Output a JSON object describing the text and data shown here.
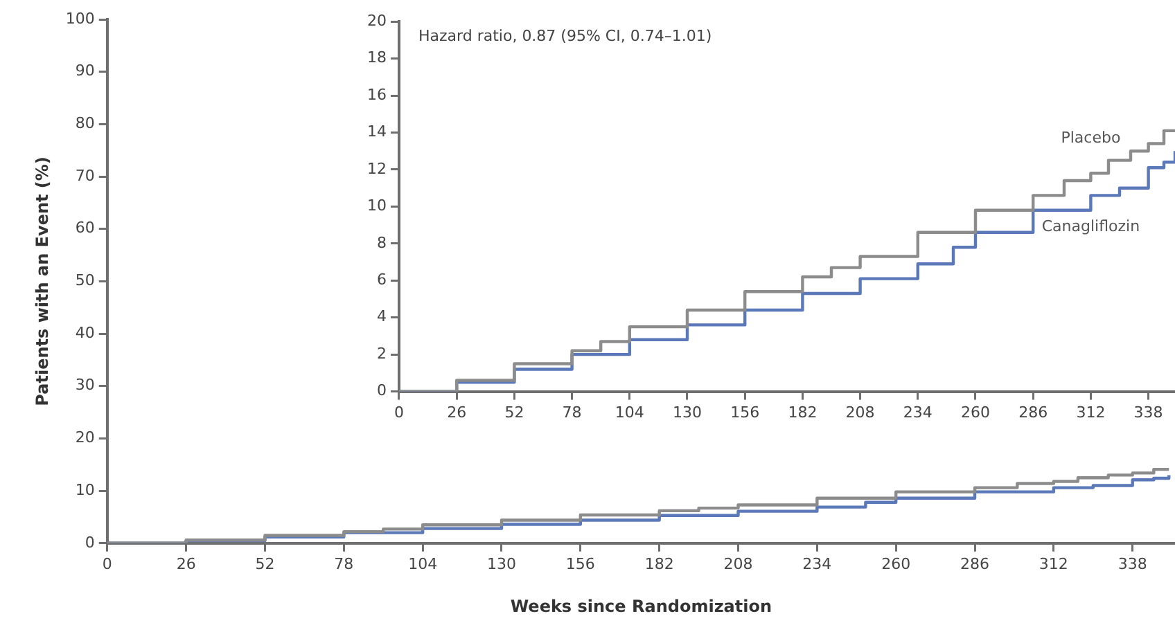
{
  "chart_data": [
    {
      "type": "step",
      "xlabel": "Weeks since Randomization",
      "ylabel": "Patients with an Event (%)",
      "xlim": [
        0,
        352
      ],
      "xticks": [
        0,
        26,
        52,
        78,
        104,
        130,
        156,
        182,
        208,
        234,
        260,
        286,
        312,
        338
      ],
      "ylim": [
        0,
        100
      ],
      "yticks": [
        0,
        10,
        20,
        30,
        40,
        50,
        60,
        70,
        80,
        90,
        100
      ],
      "grid": false,
      "legend": false,
      "series": [
        {
          "color": "#8c8c8c",
          "x": [
            0,
            26,
            52,
            78,
            91,
            104,
            130,
            156,
            182,
            195,
            208,
            234,
            260,
            286,
            300,
            312,
            320,
            330,
            338,
            345,
            350
          ],
          "values": [
            0,
            0.6,
            1.5,
            2.2,
            2.7,
            3.5,
            4.4,
            5.4,
            6.2,
            6.7,
            7.3,
            8.6,
            9.8,
            10.6,
            11.4,
            11.8,
            12.5,
            13.0,
            13.4,
            14.1,
            14.1
          ]
        },
        {
          "color": "#5b78b8",
          "x": [
            0,
            26,
            52,
            78,
            104,
            130,
            156,
            182,
            208,
            234,
            250,
            260,
            286,
            312,
            325,
            338,
            345,
            350
          ],
          "values": [
            0,
            0.5,
            1.2,
            2.0,
            2.8,
            3.6,
            4.4,
            5.3,
            6.1,
            6.9,
            7.8,
            8.6,
            9.8,
            10.6,
            11.0,
            12.1,
            12.4,
            13.0
          ]
        }
      ]
    },
    {
      "type": "step",
      "xlim": [
        0,
        350
      ],
      "xticks": [
        0,
        26,
        52,
        78,
        104,
        130,
        156,
        182,
        208,
        234,
        260,
        286,
        312,
        338
      ],
      "ylim": [
        0,
        20
      ],
      "yticks": [
        0,
        2,
        4,
        6,
        8,
        10,
        12,
        14,
        16,
        18,
        20
      ],
      "grid": false,
      "legend": false,
      "annotations": [
        "Hazard ratio, 0.87 (95% CI, 0.74–1.01)"
      ],
      "series": [
        {
          "name": "Placebo",
          "color": "#8c8c8c",
          "x": [
            0,
            26,
            52,
            78,
            91,
            104,
            130,
            156,
            182,
            195,
            208,
            234,
            260,
            286,
            300,
            312,
            320,
            330,
            338,
            345,
            350
          ],
          "values": [
            0,
            0.6,
            1.5,
            2.2,
            2.7,
            3.5,
            4.4,
            5.4,
            6.2,
            6.7,
            7.3,
            8.6,
            9.8,
            10.6,
            11.4,
            11.8,
            12.5,
            13.0,
            13.4,
            14.1,
            14.1
          ]
        },
        {
          "name": "Canagliflozin",
          "color": "#5b78b8",
          "x": [
            0,
            26,
            52,
            78,
            104,
            130,
            156,
            182,
            208,
            234,
            250,
            260,
            286,
            312,
            325,
            338,
            345,
            350
          ],
          "values": [
            0,
            0.5,
            1.2,
            2.0,
            2.8,
            3.6,
            4.4,
            5.3,
            6.1,
            6.9,
            7.8,
            8.6,
            9.8,
            10.6,
            11.0,
            12.1,
            12.4,
            13.0
          ]
        }
      ]
    }
  ]
}
